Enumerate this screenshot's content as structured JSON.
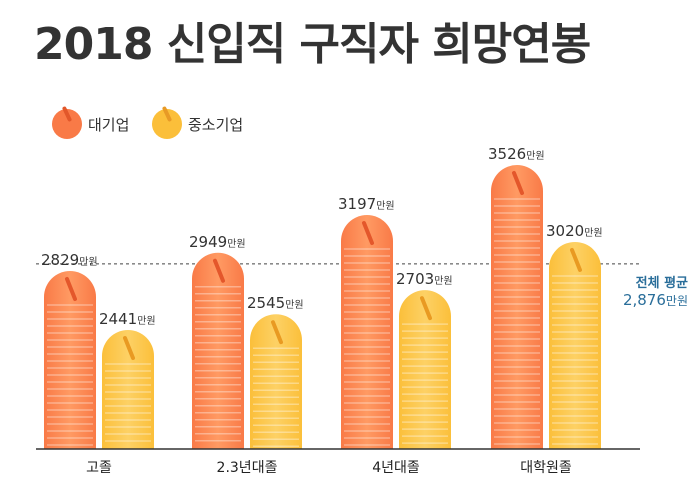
{
  "title": "2018 신입직 구직자 희망연봉",
  "legend": [
    {
      "label": "대기업",
      "color": "#f97a47"
    },
    {
      "label": "중소기업",
      "color": "#fbbf3a"
    }
  ],
  "average_note": {
    "label": "전체 평균",
    "value": "2,876",
    "unit": "만원"
  },
  "chart_data": {
    "type": "bar",
    "title": "2018 신입직 구직자 희망연봉",
    "categories": [
      "고졸",
      "2.3년대졸",
      "4년대졸",
      "대학원졸"
    ],
    "unit": "만원",
    "series": [
      {
        "name": "대기업",
        "color": "#f97a47",
        "values": [
          2829,
          2949,
          3197,
          3526
        ]
      },
      {
        "name": "중소기업",
        "color": "#fbbf3a",
        "values": [
          2441,
          2545,
          2703,
          3020
        ]
      }
    ],
    "reference_line": {
      "label": "전체 평균",
      "value": 2876
    },
    "grid": false,
    "legend_position": "top-left"
  }
}
